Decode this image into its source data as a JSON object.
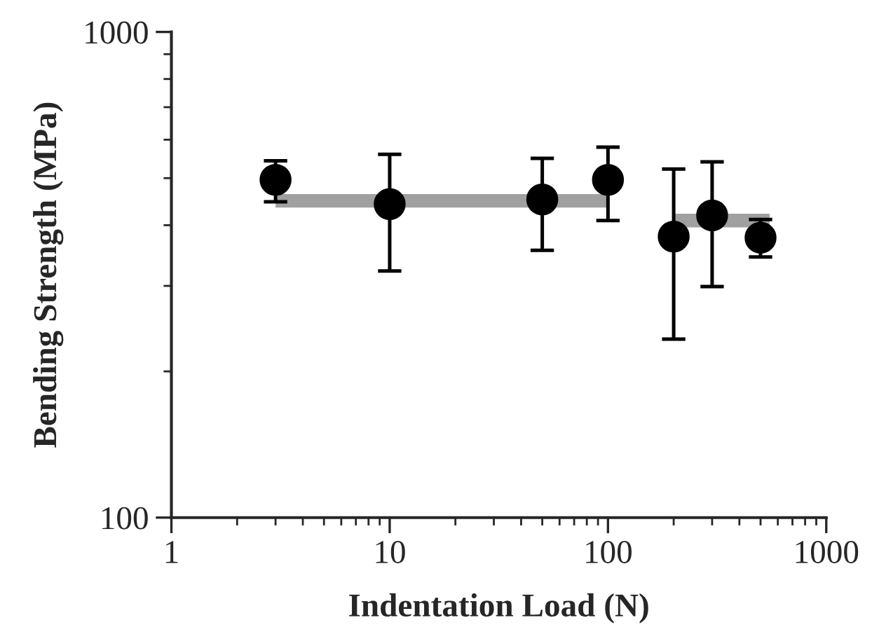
{
  "chart_data": {
    "type": "scatter",
    "xlabel": "Indentation Load (N)",
    "ylabel": "Bending Strength (MPa)",
    "log": "xy",
    "xlim": [
      1,
      1000
    ],
    "xticks": [
      1,
      10,
      100,
      1000
    ],
    "ylim": [
      100,
      1000
    ],
    "yticks": [
      100,
      1000
    ],
    "grid": false,
    "legend": false,
    "marker": "circle",
    "series": [
      {
        "color": "#000000",
        "x": [
          3,
          10,
          50,
          100,
          200,
          300,
          500
        ],
        "values": [
          496,
          442,
          452,
          496,
          379,
          419,
          377
        ],
        "errors": [
          [
            447,
            543
          ],
          [
            322,
            560
          ],
          [
            355,
            549
          ],
          [
            409,
            579
          ],
          [
            233,
            522
          ],
          [
            299,
            540
          ],
          [
            344,
            411
          ]
        ]
      },
      {
        "type": "line",
        "color": "#a0a0a0",
        "x": [
          3,
          100
        ],
        "values": [
          449,
          449
        ],
        "marker": "none"
      },
      {
        "type": "line",
        "color": "#a0a0a0",
        "x": [
          200,
          550
        ],
        "values": [
          409,
          409
        ],
        "marker": "none"
      }
    ]
  }
}
